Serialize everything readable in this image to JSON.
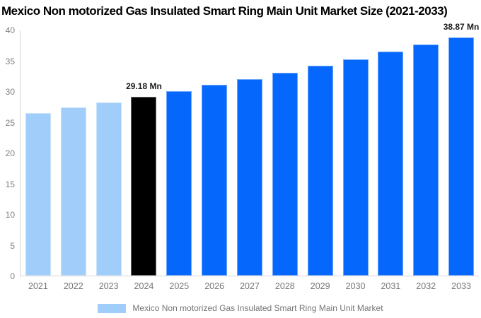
{
  "title": "Mexico Non motorized Gas Insulated Smart Ring Main Unit Market Size (2021-2033)",
  "chart_data": {
    "type": "bar",
    "categories": [
      "2021",
      "2022",
      "2023",
      "2024",
      "2025",
      "2026",
      "2027",
      "2028",
      "2029",
      "2030",
      "2031",
      "2032",
      "2033"
    ],
    "values": [
      26.5,
      27.4,
      28.3,
      29.18,
      30.1,
      31.1,
      32.1,
      33.1,
      34.2,
      35.3,
      36.5,
      37.7,
      38.87
    ],
    "bar_colors": [
      "#A0CDFA",
      "#A0CDFA",
      "#A0CDFA",
      "#000000",
      "#0567FC",
      "#0567FC",
      "#0567FC",
      "#0567FC",
      "#0567FC",
      "#0567FC",
      "#0567FC",
      "#0567FC",
      "#0567FC"
    ],
    "annotations": [
      {
        "category": "2024",
        "text": "29.18 Mn"
      },
      {
        "category": "2033",
        "text": "38.87 Mn"
      }
    ],
    "title": "Mexico Non motorized Gas Insulated Smart Ring Main Unit Market Size (2021-2033)",
    "xlabel": "",
    "ylabel": "",
    "ylim": [
      0,
      40
    ],
    "yticks": [
      0,
      5,
      10,
      15,
      20,
      25,
      30,
      35,
      40
    ],
    "grid": false,
    "legend_position": "bottom",
    "legend": [
      {
        "label": "Mexico Non motorized Gas Insulated Smart Ring Main Unit Market",
        "color": "#A0CDFA"
      }
    ]
  },
  "colors": {
    "axis_line": "#d4d4d4",
    "tick_label": "#7f7f7f",
    "x_label": "#757575",
    "annotation_text": "#1a1a1a",
    "title_text": "#000000",
    "legend_text": "#757575",
    "past_bar": "#A0CDFA",
    "current_bar": "#000000",
    "forecast_bar": "#0567FC"
  }
}
